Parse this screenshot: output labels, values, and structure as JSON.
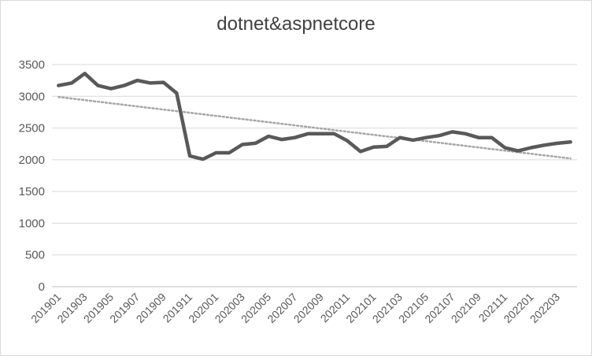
{
  "chart_data": {
    "type": "line",
    "title": "dotnet&aspnetcore",
    "xlabel": "",
    "ylabel": "",
    "ylim": [
      0,
      3500
    ],
    "yticks": [
      0,
      500,
      1000,
      1500,
      2000,
      2500,
      3000,
      3500
    ],
    "x": [
      "201901",
      "201902",
      "201903",
      "201904",
      "201905",
      "201906",
      "201907",
      "201908",
      "201909",
      "201910",
      "201911",
      "201912",
      "202001",
      "202002",
      "202003",
      "202004",
      "202005",
      "202006",
      "202007",
      "202008",
      "202009",
      "202010",
      "202011",
      "202012",
      "202101",
      "202102",
      "202103",
      "202104",
      "202105",
      "202106",
      "202107",
      "202108",
      "202109",
      "202110",
      "202111",
      "202112",
      "202201",
      "202202",
      "202203",
      "202204"
    ],
    "x_tick_labels": [
      "201901",
      "201903",
      "201905",
      "201907",
      "201909",
      "201911",
      "202001",
      "202003",
      "202005",
      "202007",
      "202009",
      "202011",
      "202101",
      "202103",
      "202105",
      "202107",
      "202109",
      "202111",
      "202201",
      "202203"
    ],
    "series": [
      {
        "values": [
          3170,
          3210,
          3360,
          3170,
          3120,
          3170,
          3250,
          3210,
          3220,
          3050,
          2060,
          2010,
          2110,
          2110,
          2240,
          2260,
          2370,
          2320,
          2350,
          2410,
          2410,
          2410,
          2300,
          2130,
          2200,
          2210,
          2350,
          2310,
          2350,
          2380,
          2440,
          2410,
          2350,
          2350,
          2190,
          2140,
          2190,
          2230,
          2260,
          2280
        ],
        "color": "#595959",
        "style": "solid"
      }
    ],
    "trendline": {
      "type": "linear",
      "start": 2990,
      "end": 2020,
      "color": "#a6a6a6",
      "style": "dotted"
    },
    "grid": true,
    "legend": "none"
  }
}
